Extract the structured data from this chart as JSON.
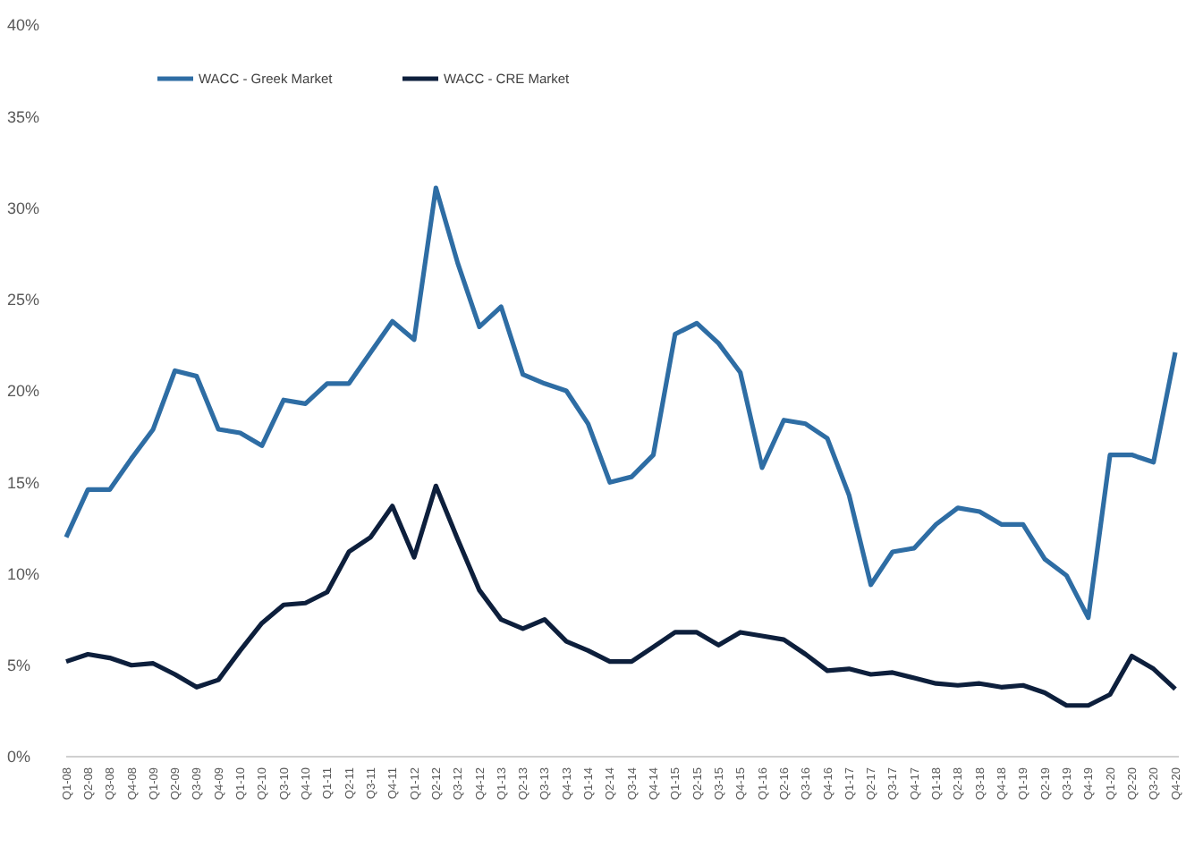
{
  "chart_data": {
    "type": "line",
    "categories": [
      "Q1-08",
      "Q2-08",
      "Q3-08",
      "Q4-08",
      "Q1-09",
      "Q2-09",
      "Q3-09",
      "Q4-09",
      "Q1-10",
      "Q2-10",
      "Q3-10",
      "Q4-10",
      "Q1-11",
      "Q2-11",
      "Q3-11",
      "Q4-11",
      "Q1-12",
      "Q2-12",
      "Q3-12",
      "Q4-12",
      "Q1-13",
      "Q2-13",
      "Q3-13",
      "Q4-13",
      "Q1-14",
      "Q2-14",
      "Q3-14",
      "Q4-14",
      "Q1-15",
      "Q2-15",
      "Q3-15",
      "Q4-15",
      "Q1-16",
      "Q2-16",
      "Q3-16",
      "Q4-16",
      "Q1-17",
      "Q2-17",
      "Q3-17",
      "Q4-17",
      "Q1-18",
      "Q2-18",
      "Q3-18",
      "Q4-18",
      "Q1-19",
      "Q2-19",
      "Q3-19",
      "Q4-19",
      "Q1-20",
      "Q2-20",
      "Q3-20",
      "Q4-20"
    ],
    "series": [
      {
        "name": "WACC - Greek Market",
        "color": "#2e6da4",
        "values": [
          12.0,
          14.6,
          14.6,
          16.3,
          17.9,
          21.1,
          20.8,
          17.9,
          17.7,
          17.0,
          19.5,
          19.3,
          20.4,
          20.4,
          22.1,
          23.8,
          22.8,
          31.1,
          27.0,
          23.5,
          24.6,
          20.9,
          20.4,
          20.0,
          18.2,
          15.0,
          15.3,
          16.5,
          23.1,
          23.7,
          22.6,
          21.0,
          15.8,
          18.4,
          18.2,
          17.4,
          14.3,
          9.4,
          11.2,
          11.4,
          12.7,
          13.6,
          13.4,
          12.7,
          12.7,
          10.8,
          9.9,
          7.6,
          16.5,
          16.5,
          16.1,
          22.1
        ]
      },
      {
        "name": "WACC - CRE Market",
        "color": "#0d1f3c",
        "values": [
          5.2,
          5.6,
          5.4,
          5.0,
          5.1,
          4.5,
          3.8,
          4.2,
          5.8,
          7.3,
          8.3,
          8.4,
          9.0,
          11.2,
          12.0,
          13.7,
          10.9,
          14.8,
          11.9,
          9.1,
          7.5,
          7.0,
          7.5,
          6.3,
          5.8,
          5.2,
          5.2,
          6.0,
          6.8,
          6.8,
          6.1,
          6.8,
          6.6,
          6.4,
          5.6,
          4.7,
          4.8,
          4.5,
          4.6,
          4.3,
          4.0,
          3.9,
          4.0,
          3.8,
          3.9,
          3.5,
          2.8,
          2.8,
          3.4,
          5.5,
          4.8,
          3.7
        ]
      }
    ],
    "ylim": [
      0,
      40
    ],
    "yticks": [
      {
        "value": 0,
        "label": "0%"
      },
      {
        "value": 5,
        "label": "5%"
      },
      {
        "value": 10,
        "label": "10%"
      },
      {
        "value": 15,
        "label": "15%"
      },
      {
        "value": 20,
        "label": "20%"
      },
      {
        "value": 25,
        "label": "25%"
      },
      {
        "value": 30,
        "label": "30%"
      },
      {
        "value": 35,
        "label": "35%"
      },
      {
        "value": 40,
        "label": "40%"
      }
    ],
    "legend": "top",
    "grid": false,
    "marker": "none",
    "line_style": "solid"
  }
}
